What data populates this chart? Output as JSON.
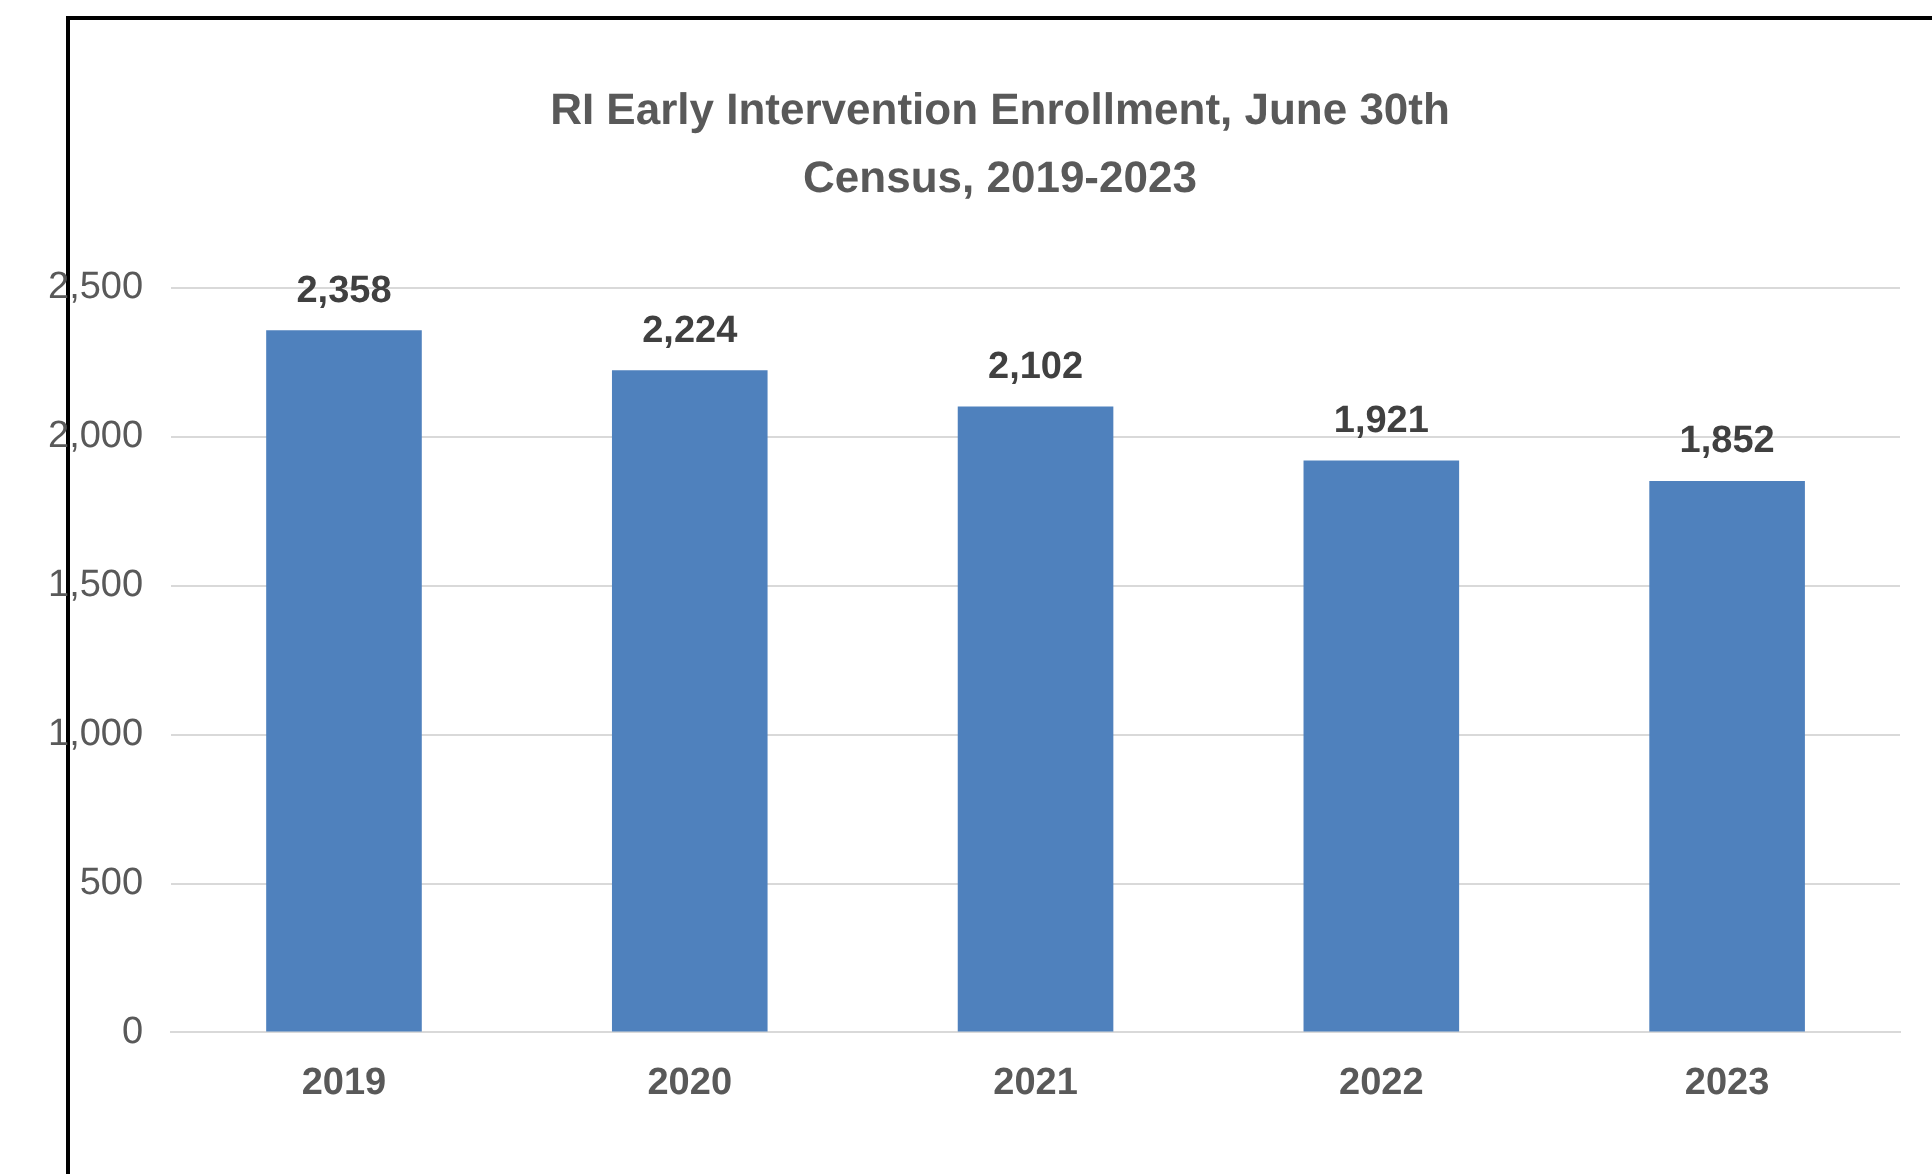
{
  "chart_data": {
    "type": "bar",
    "title": "RI Early Intervention Enrollment, June 30th Census, 2019-2023",
    "categories": [
      "2019",
      "2020",
      "2021",
      "2022",
      "2023"
    ],
    "values": [
      2358,
      2224,
      2102,
      1921,
      1852
    ],
    "value_labels": [
      "2,358",
      "2,224",
      "2,102",
      "1,921",
      "1,852"
    ],
    "color": "#4f81bd",
    "ylim": [
      0,
      2500
    ],
    "yticks": [
      0,
      500,
      {
        "value": 1000,
        "label": "1,000"
      },
      {
        "value": 1500,
        "label": "1,500"
      },
      {
        "value": 2000,
        "label": "2,000"
      },
      {
        "value": 2500,
        "label": "2,500"
      }
    ],
    "grid": "y",
    "legend": false
  }
}
